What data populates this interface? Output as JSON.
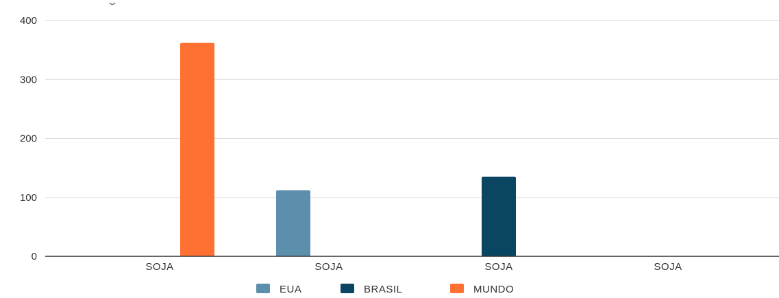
{
  "chart_data": {
    "type": "bar",
    "title": "",
    "xlabel": "",
    "ylabel": "",
    "ylim": [
      0,
      400
    ],
    "yticks": [
      0,
      100,
      200,
      300,
      400
    ],
    "grid": true,
    "legend_position": "bottom",
    "categories": [
      "SOJA",
      "SOJA",
      "SOJA",
      "SOJA"
    ],
    "series": [
      {
        "name": "EUA",
        "color": "#5b8fac",
        "values": [
          null,
          112,
          null,
          null
        ]
      },
      {
        "name": "BRASIL",
        "color": "#0a4561",
        "values": [
          null,
          null,
          135,
          null
        ]
      },
      {
        "name": "MUNDO",
        "color": "#ff7132",
        "values": [
          362,
          null,
          null,
          null
        ]
      }
    ]
  }
}
